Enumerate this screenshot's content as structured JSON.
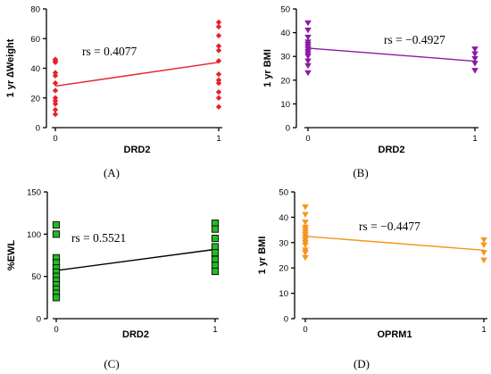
{
  "chart_data": [
    {
      "panel_label": "(A)",
      "type": "scatter",
      "xlabel": "DRD2",
      "ylabel": "1 yr ∆Weight",
      "annotation": "rs = 0.4077",
      "color": "#e8212a",
      "marker": "diamond",
      "ylim": [
        0,
        80
      ],
      "yticks": [
        0,
        20,
        40,
        60,
        80
      ],
      "xticks": [
        0,
        1
      ],
      "points": {
        "x0": [
          46,
          45,
          44,
          37,
          35,
          30,
          25,
          20,
          18,
          16,
          12,
          9
        ],
        "x1": [
          71,
          68,
          62,
          55,
          52,
          45,
          36,
          32,
          30,
          24,
          20,
          14
        ]
      },
      "fit_line": {
        "x": [
          0,
          1
        ],
        "y": [
          28,
          44
        ]
      }
    },
    {
      "panel_label": "(B)",
      "type": "scatter",
      "xlabel": "DRD2",
      "ylabel": "1 yr BMI",
      "annotation": "rs = −0.4927",
      "color": "#8b1aa3",
      "marker": "triangle-down",
      "ylim": [
        0,
        50
      ],
      "yticks": [
        0,
        10,
        20,
        30,
        40,
        50
      ],
      "xticks": [
        0,
        1
      ],
      "points": {
        "x0": [
          44,
          41,
          38,
          36,
          35,
          34,
          33,
          32,
          31,
          30,
          28,
          26,
          23
        ],
        "x1": [
          33,
          31,
          29,
          27,
          24
        ]
      },
      "fit_line": {
        "x": [
          0,
          1
        ],
        "y": [
          33.5,
          28
        ]
      }
    },
    {
      "panel_label": "(C)",
      "type": "scatter",
      "xlabel": "DRD2",
      "ylabel": "%EWL",
      "annotation": "rs = 0.5521",
      "color": "#22bb22",
      "marker": "square",
      "ylim": [
        0,
        150
      ],
      "yticks": [
        0,
        50,
        100,
        150
      ],
      "xticks": [
        0,
        1
      ],
      "points": {
        "x0": [
          111,
          100,
          72,
          66,
          60,
          55,
          50,
          45,
          40,
          35,
          30,
          25
        ],
        "x1": [
          113,
          106,
          95,
          85,
          78,
          70,
          63,
          56
        ]
      },
      "fit_line": {
        "x": [
          0,
          1
        ],
        "y": [
          57,
          82
        ]
      }
    },
    {
      "panel_label": "(D)",
      "type": "scatter",
      "xlabel": "OPRM1",
      "ylabel": "1 yr BMI",
      "annotation": "rs = −0.4477",
      "color": "#f7941d",
      "marker": "triangle-down",
      "ylim": [
        0,
        50
      ],
      "yticks": [
        0,
        10,
        20,
        30,
        40,
        50
      ],
      "xticks": [
        0,
        1
      ],
      "points": {
        "x0": [
          44,
          41,
          38,
          36,
          35,
          34,
          33,
          32,
          31,
          30,
          29,
          27,
          26,
          24
        ],
        "x1": [
          31,
          29,
          26,
          23
        ]
      },
      "fit_line": {
        "x": [
          0,
          1
        ],
        "y": [
          32.5,
          27
        ]
      }
    }
  ]
}
